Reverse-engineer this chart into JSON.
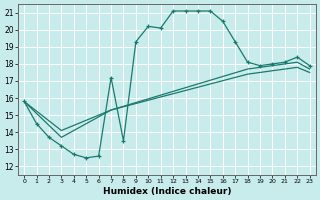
{
  "xlabel": "Humidex (Indice chaleur)",
  "bg_color": "#c8ecec",
  "line_color": "#1a7a6e",
  "grid_color": "#ffffff",
  "xlim": [
    -0.5,
    23.5
  ],
  "ylim": [
    11.5,
    21.5
  ],
  "xticks": [
    0,
    1,
    2,
    3,
    4,
    5,
    6,
    7,
    8,
    9,
    10,
    11,
    12,
    13,
    14,
    15,
    16,
    17,
    18,
    19,
    20,
    21,
    22,
    23
  ],
  "yticks": [
    12,
    13,
    14,
    15,
    16,
    17,
    18,
    19,
    20,
    21
  ],
  "curve1_x": [
    0,
    1,
    2,
    3,
    4,
    5,
    6,
    7,
    8,
    9,
    10,
    11,
    12,
    13,
    14,
    15,
    16,
    17,
    18,
    19,
    20,
    21,
    22,
    23
  ],
  "curve1_y": [
    15.8,
    14.5,
    13.7,
    13.2,
    12.7,
    12.5,
    12.6,
    17.2,
    13.5,
    19.3,
    20.2,
    20.1,
    21.1,
    21.1,
    21.1,
    21.1,
    20.5,
    19.3,
    18.1,
    17.9,
    18.0,
    18.1,
    18.4,
    17.9
  ],
  "curve2_x": [
    0,
    3,
    7,
    18,
    22,
    23
  ],
  "curve2_y": [
    15.8,
    14.1,
    15.3,
    17.7,
    18.1,
    17.7
  ],
  "curve3_x": [
    0,
    3,
    7,
    18,
    22,
    23
  ],
  "curve3_y": [
    15.8,
    13.7,
    15.3,
    17.4,
    17.8,
    17.5
  ]
}
